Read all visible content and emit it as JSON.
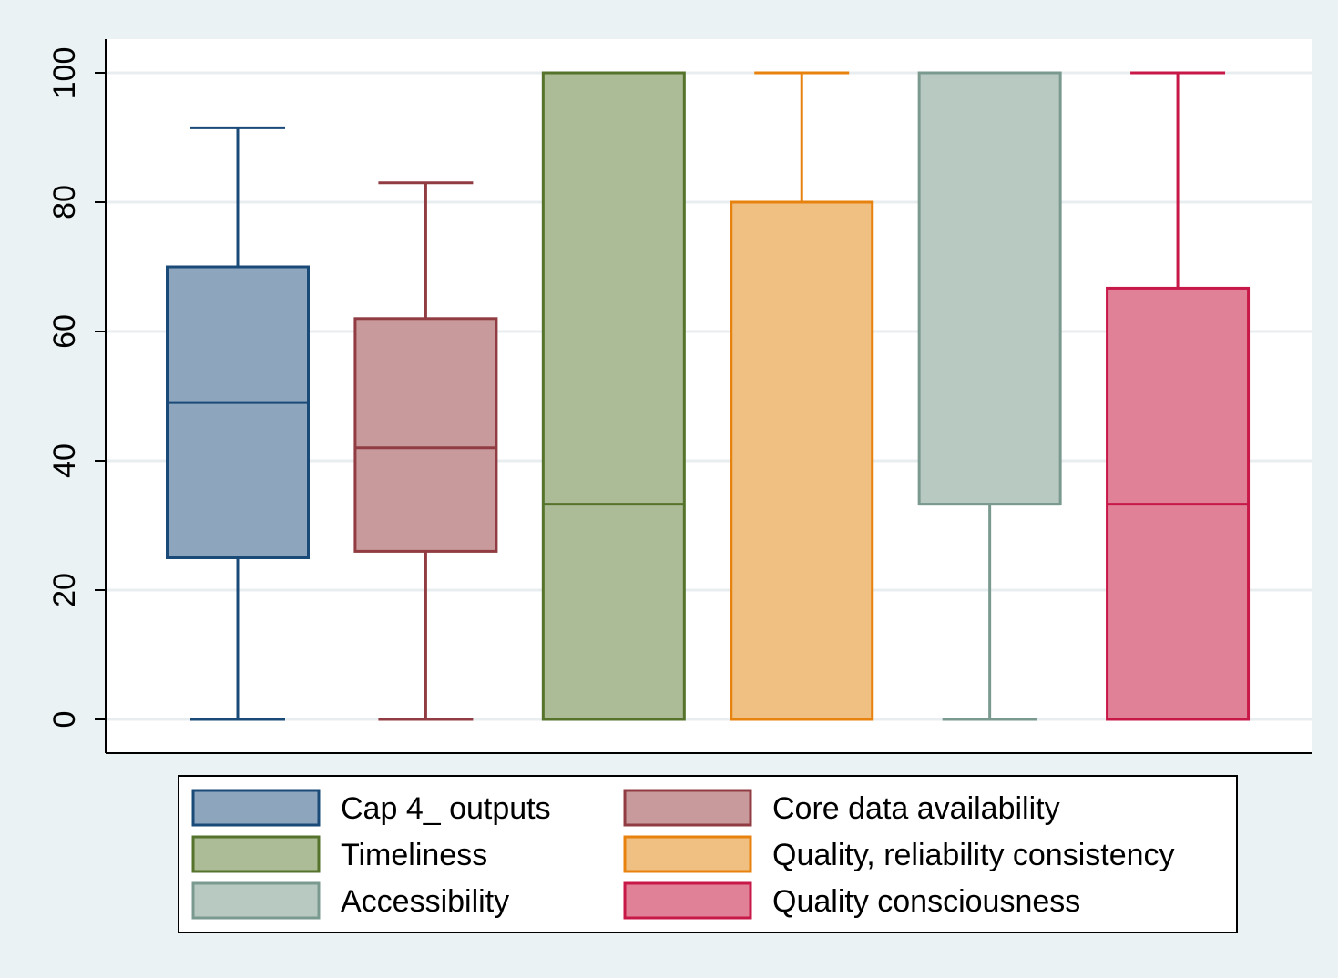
{
  "chart_data": {
    "type": "box",
    "title": "",
    "xlabel": "",
    "ylabel": "",
    "ylim": [
      0,
      100
    ],
    "yticks": [
      0,
      20,
      40,
      60,
      80,
      100
    ],
    "grid": true,
    "legend_position": "bottom",
    "series": [
      {
        "name": "Cap 4_ outputs",
        "min": 0,
        "q1": 25,
        "median": 49,
        "q3": 70,
        "max": 91.5,
        "color": "#1a4a78",
        "fill": "#8ea5be"
      },
      {
        "name": "Core data availability",
        "min": 0,
        "q1": 26,
        "median": 42,
        "q3": 62,
        "max": 83,
        "color": "#903c42",
        "fill": "#c99a9c"
      },
      {
        "name": "Timeliness",
        "min": 0,
        "q1": 0,
        "median": 33.3,
        "q3": 100,
        "max": 100,
        "color": "#55732b",
        "fill": "#abbc96"
      },
      {
        "name": "Quality, reliability consistency",
        "min": 0,
        "q1": 0,
        "median": 0,
        "q3": 80,
        "max": 100,
        "color": "#e8820e",
        "fill": "#f0c082"
      },
      {
        "name": "Accessibility",
        "min": 0,
        "q1": 33.3,
        "median": 33.3,
        "q3": 100,
        "max": 100,
        "color": "#7a9a90",
        "fill": "#b8c9c2"
      },
      {
        "name": "Quality consciousness",
        "min": 0,
        "q1": 0,
        "median": 33.3,
        "q3": 66.7,
        "max": 100,
        "color": "#c81848",
        "fill": "#e08198"
      }
    ]
  }
}
